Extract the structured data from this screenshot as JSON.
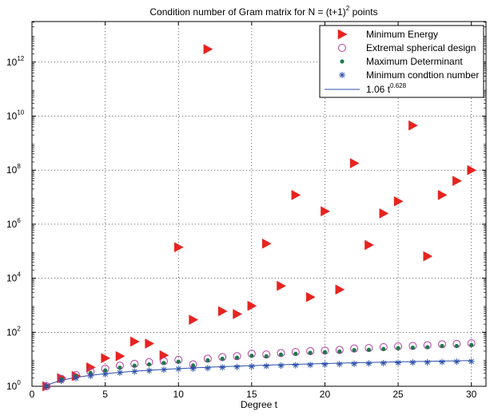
{
  "chart_data": {
    "type": "scatter",
    "title": {
      "base": "Condition number of Gram matrix for N = (t+1)",
      "sup": "2",
      "tail": " points"
    },
    "xlabel": "Degree t",
    "ylabel": "",
    "x_scale": "linear",
    "y_scale": "log",
    "xlim": [
      0,
      31
    ],
    "ylim_log10": [
      0,
      13.5
    ],
    "xticks": [
      0,
      5,
      10,
      15,
      20,
      25,
      30
    ],
    "yticks": [
      {
        "base": "10",
        "exp": "0",
        "log10": 0
      },
      {
        "base": "10",
        "exp": "2",
        "log10": 2
      },
      {
        "base": "10",
        "exp": "4",
        "log10": 4
      },
      {
        "base": "10",
        "exp": "6",
        "log10": 6
      },
      {
        "base": "10",
        "exp": "8",
        "log10": 8
      },
      {
        "base": "10",
        "exp": "10",
        "log10": 10
      },
      {
        "base": "10",
        "exp": "12",
        "log10": 12
      }
    ],
    "grid": true,
    "legend_position": "top-right",
    "series": [
      {
        "name": "Minimum Energy",
        "marker": "triangle-right",
        "color": "#e8231f",
        "x": [
          1,
          2,
          3,
          4,
          5,
          6,
          7,
          8,
          9,
          10,
          11,
          12,
          13,
          14,
          15,
          16,
          17,
          18,
          19,
          20,
          21,
          22,
          23,
          24,
          25,
          26,
          27,
          28,
          29,
          30
        ],
        "y": [
          1,
          2,
          2.4,
          5,
          11,
          13,
          45,
          38,
          14,
          140000,
          290,
          3000000000000.0,
          600,
          470,
          950,
          190000,
          5200,
          12000000.0,
          2000,
          3000000.0,
          3800,
          180000000.0,
          170000,
          2500000.0,
          7000000.0,
          4500000000.0,
          65000,
          12000000.0,
          40000000.0,
          100000000.0
        ]
      },
      {
        "name": "Extremal spherical design",
        "marker": "circle-open",
        "color": "#b03aa6",
        "x": [
          1,
          2,
          3,
          4,
          5,
          6,
          7,
          8,
          9,
          10,
          11,
          12,
          13,
          14,
          15,
          16,
          17,
          18,
          19,
          20,
          21,
          22,
          23,
          24,
          25,
          26,
          27,
          28,
          29,
          30
        ],
        "y": [
          1,
          1.9,
          2.6,
          3.5,
          4.5,
          5.8,
          6.8,
          7.8,
          8.5,
          9.5,
          6.5,
          10.5,
          12,
          13,
          16,
          15,
          17,
          18.5,
          20,
          21,
          22,
          25,
          26,
          28,
          30,
          31,
          33,
          36,
          37,
          39
        ]
      },
      {
        "name": "Maximum Determinant",
        "marker": "dot",
        "color": "#1e7a4a",
        "x": [
          1,
          2,
          3,
          4,
          5,
          6,
          7,
          8,
          9,
          10,
          11,
          12,
          13,
          14,
          15,
          16,
          17,
          18,
          19,
          20,
          21,
          22,
          23,
          24,
          25,
          26,
          27,
          28,
          29,
          30
        ],
        "y": [
          1,
          1.85,
          2.4,
          3.1,
          3.9,
          4.9,
          5.8,
          6.5,
          7.3,
          8.2,
          5.9,
          9.2,
          10.5,
          11.5,
          13.5,
          13,
          15,
          16,
          17.5,
          18.5,
          19.5,
          22,
          22.5,
          24,
          26,
          27,
          28,
          31,
          31,
          34
        ]
      },
      {
        "name": "Minimum condtion number",
        "marker": "asterisk",
        "color": "#2b4fa8",
        "x": [
          1,
          2,
          3,
          4,
          5,
          6,
          7,
          8,
          9,
          10,
          11,
          12,
          13,
          14,
          15,
          16,
          17,
          18,
          19,
          20,
          21,
          22,
          23,
          24,
          25,
          26,
          27,
          28,
          29,
          30
        ],
        "y": [
          1,
          1.6,
          2.0,
          2.4,
          2.8,
          3.2,
          3.5,
          3.8,
          4.1,
          4.4,
          4.5,
          4.7,
          5.0,
          5.2,
          5.4,
          5.6,
          5.8,
          6.0,
          6.2,
          6.4,
          6.6,
          6.8,
          7.0,
          7.2,
          7.4,
          7.6,
          7.7,
          7.9,
          8.1,
          8.3
        ]
      },
      {
        "name_base": "1.06 t",
        "name_sup": "0.628",
        "type": "line",
        "color": "#2b4fa8",
        "coef": 1.06,
        "power": 0.628,
        "x_range": [
          1,
          30
        ]
      }
    ]
  }
}
